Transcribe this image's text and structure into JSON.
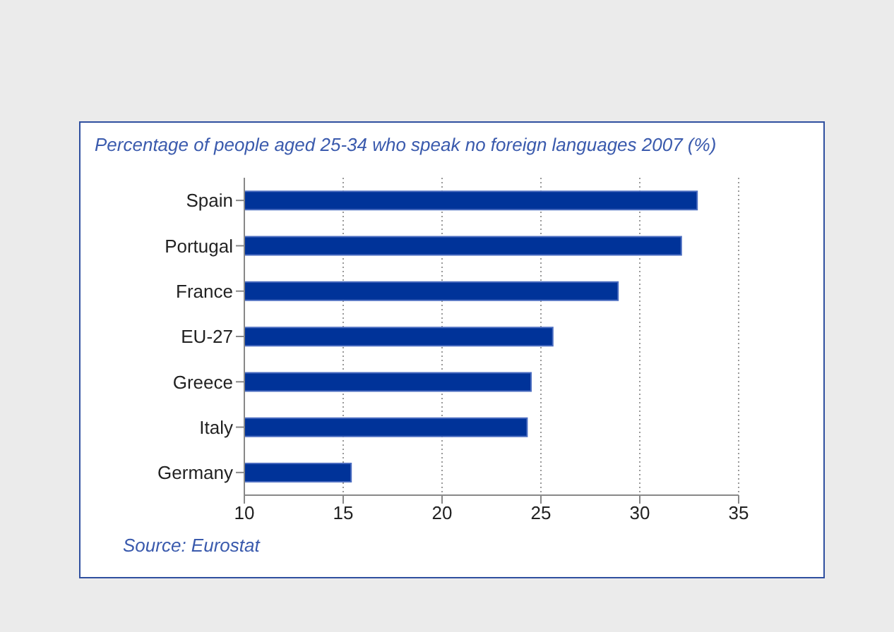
{
  "chart_data": {
    "type": "bar",
    "orientation": "horizontal",
    "title": "Percentage of people aged 25-34 who speak no foreign languages 2007 (%)",
    "categories": [
      "Spain",
      "Portugal",
      "France",
      "EU-27",
      "Greece",
      "Italy",
      "Germany"
    ],
    "values": [
      32.9,
      32.1,
      28.9,
      25.6,
      24.5,
      24.3,
      15.4
    ],
    "color": "#003399",
    "xlim": [
      10,
      35
    ],
    "xticks": [
      10,
      15,
      20,
      25,
      30,
      35
    ],
    "grid": "x",
    "annotations": [
      "Source: Eurostat"
    ]
  }
}
